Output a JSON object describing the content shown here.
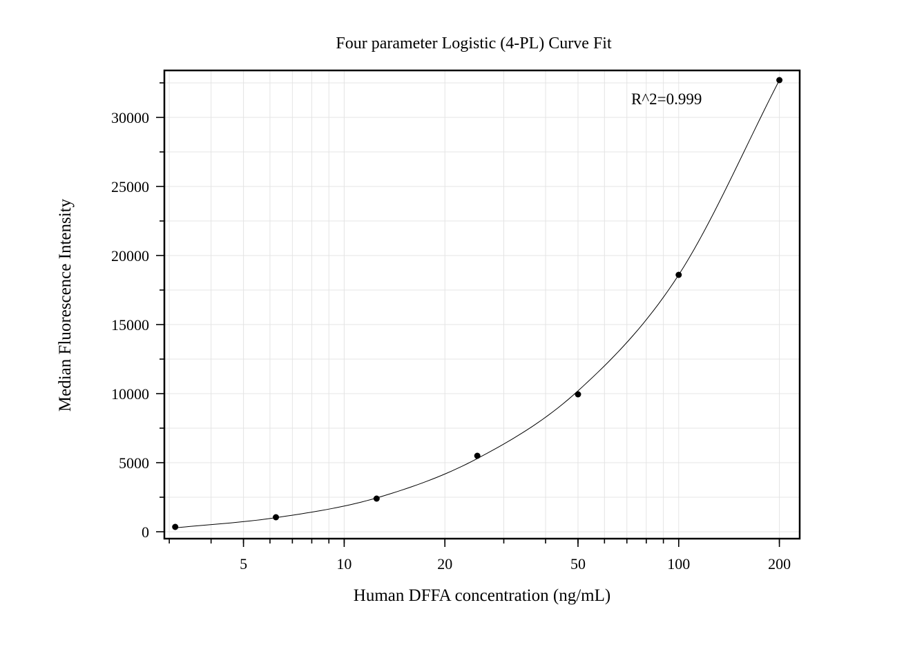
{
  "chart_data": {
    "type": "scatter",
    "title": "Four parameter Logistic (4-PL) Curve Fit",
    "xlabel": "Human DFFA concentration (ng/mL)",
    "ylabel": "Median Fluorescence Intensity",
    "x_scale": "log",
    "xlim": [
      2.9,
      230
    ],
    "ylim": [
      -500,
      33400
    ],
    "x_ticks": [
      5,
      10,
      20,
      50,
      100,
      200
    ],
    "x_tick_labels": [
      "5",
      "10",
      "20",
      "50",
      "100",
      "200"
    ],
    "y_ticks": [
      0,
      5000,
      10000,
      15000,
      20000,
      25000,
      30000
    ],
    "y_tick_labels": [
      "0",
      "5000",
      "10000",
      "15000",
      "20000",
      "25000",
      "30000"
    ],
    "grid": true,
    "series": [
      {
        "points": [
          {
            "x": 3.125,
            "y": 350
          },
          {
            "x": 6.25,
            "y": 1050
          },
          {
            "x": 12.5,
            "y": 2400
          },
          {
            "x": 25,
            "y": 5500
          },
          {
            "x": 50,
            "y": 9950
          },
          {
            "x": 100,
            "y": 18600
          },
          {
            "x": 200,
            "y": 32700
          }
        ]
      }
    ],
    "fit_curve": {
      "model": "4-PL",
      "points": [
        {
          "x": 3.125,
          "y": 280
        },
        {
          "x": 6.25,
          "y": 1020
        },
        {
          "x": 12.5,
          "y": 2450
        },
        {
          "x": 25,
          "y": 5300
        },
        {
          "x": 50,
          "y": 10200
        },
        {
          "x": 100,
          "y": 18600
        },
        {
          "x": 200,
          "y": 32700
        }
      ]
    },
    "annotations": [
      {
        "text": "R^2=0.999"
      }
    ]
  }
}
